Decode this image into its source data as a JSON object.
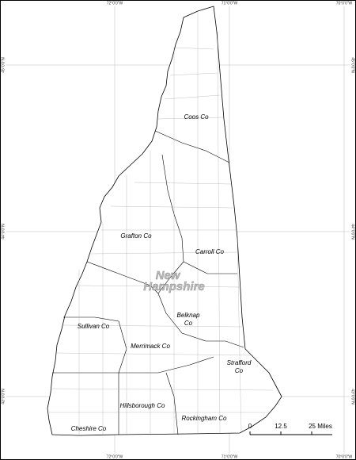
{
  "map": {
    "longitude_labels": [
      "72°0'0\"W",
      "71°0'0\"W",
      "70°0'0\"W"
    ],
    "latitude_labels": [
      "45°0'0\"N",
      "44°0'0\"N",
      "43°0'0\"N"
    ],
    "state_label": [
      "New",
      "Hampshire"
    ],
    "county_labels": [
      [
        "Coos Co"
      ],
      [
        "Grafton Co"
      ],
      [
        "Carroll Co"
      ],
      [
        "Belknap",
        "Co"
      ],
      [
        "Sullivan Co"
      ],
      [
        "Merrimack Co"
      ],
      [
        "Strafford",
        "Co"
      ],
      [
        "Hillsborough Co"
      ],
      [
        "Rockingham Co"
      ],
      [
        "Cheshire Co"
      ]
    ],
    "scale_labels": [
      "0",
      "12.5",
      "25 Miles"
    ]
  }
}
